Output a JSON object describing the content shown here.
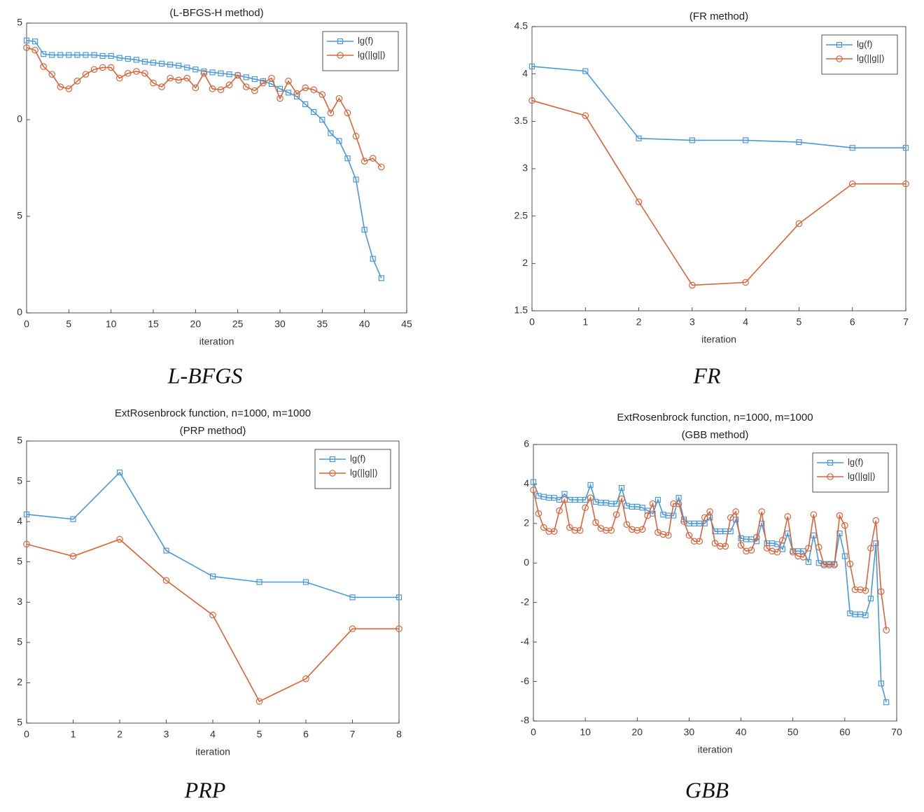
{
  "chart_data": [
    {
      "type": "line",
      "title": "(L-BFGS-H method)",
      "xlabel": "iteration",
      "legend": "northeast",
      "xlim": [
        0,
        45
      ],
      "xticks": [
        0,
        5,
        10,
        15,
        20,
        25,
        30,
        35,
        40,
        45
      ],
      "ylim": [
        -10,
        5
      ],
      "yticks": [
        {
          "value": -10,
          "label": "0"
        },
        {
          "value": -5,
          "label": "5"
        },
        0,
        5
      ],
      "x": [
        0,
        1,
        2,
        3,
        4,
        5,
        6,
        7,
        8,
        9,
        10,
        11,
        12,
        13,
        14,
        15,
        16,
        17,
        18,
        19,
        20,
        21,
        22,
        23,
        24,
        25,
        26,
        27,
        28,
        29,
        30,
        31,
        32,
        33,
        34,
        35,
        36,
        37,
        38,
        39,
        40,
        41,
        42
      ],
      "series": [
        {
          "name": "lg(f)",
          "color": "#4a98dc",
          "marker": "square",
          "values": [
            4.1,
            4.05,
            3.4,
            3.35,
            3.35,
            3.35,
            3.35,
            3.35,
            3.35,
            3.3,
            3.3,
            3.2,
            3.15,
            3.1,
            3.0,
            2.95,
            2.9,
            2.85,
            2.8,
            2.7,
            2.6,
            2.5,
            2.45,
            2.4,
            2.35,
            2.3,
            2.2,
            2.1,
            2.0,
            1.85,
            1.6,
            1.4,
            1.2,
            0.8,
            0.4,
            0,
            -0.7,
            -1.1,
            -2.0,
            -3.1,
            -5.7,
            -7.2,
            -8.2
          ]
        },
        {
          "name": "lg(||g||)",
          "color": "#d9643a",
          "marker": "circle",
          "values": [
            3.73,
            3.6,
            2.75,
            2.35,
            1.7,
            1.6,
            2.0,
            2.35,
            2.6,
            2.7,
            2.7,
            2.15,
            2.4,
            2.5,
            2.4,
            1.9,
            1.7,
            2.15,
            2.05,
            2.15,
            1.65,
            2.4,
            1.6,
            1.55,
            1.8,
            2.3,
            1.7,
            1.5,
            1.9,
            2.15,
            1.1,
            2.0,
            1.35,
            1.65,
            1.55,
            1.3,
            0.35,
            1.1,
            0.35,
            -0.85,
            -2.15,
            -2.0,
            -2.45
          ]
        }
      ]
    },
    {
      "type": "line",
      "title": "(FR method)",
      "xlabel": "iteration",
      "legend": "northeast",
      "xlim": [
        0,
        7
      ],
      "xticks": [
        0,
        1,
        2,
        3,
        4,
        5,
        6,
        7
      ],
      "ylim": [
        1.5,
        4.5
      ],
      "yticks": [
        1.5,
        2,
        2.5,
        3,
        3.5,
        4,
        4.5
      ],
      "x": [
        0,
        1,
        2,
        3,
        4,
        5,
        6,
        7
      ],
      "series": [
        {
          "name": "lg(f)",
          "color": "#4a98dc",
          "marker": "square",
          "values": [
            4.08,
            4.03,
            3.32,
            3.3,
            3.3,
            3.28,
            3.22,
            3.22
          ]
        },
        {
          "name": "lg(||g||)",
          "color": "#d9643a",
          "marker": "circle",
          "values": [
            3.72,
            3.56,
            2.65,
            1.77,
            1.8,
            2.42,
            2.84,
            2.84
          ]
        }
      ]
    },
    {
      "type": "line",
      "title": "ExtRosenbrock function, n=1000, m=1000",
      "subtitle": "(PRP method)",
      "xlabel": "iteration",
      "legend": "northeast",
      "xlim": [
        0,
        8
      ],
      "xticks": [
        0,
        1,
        2,
        3,
        4,
        5,
        6,
        7,
        8
      ],
      "ylim": [
        1.5,
        5
      ],
      "yticks": [
        {
          "value": 1.5,
          "label": "5"
        },
        {
          "value": 2,
          "label": "2"
        },
        {
          "value": 2.5,
          "label": "5"
        },
        {
          "value": 3,
          "label": "3"
        },
        {
          "value": 3.5,
          "label": "5"
        },
        {
          "value": 4,
          "label": "4"
        },
        {
          "value": 4.5,
          "label": "5"
        },
        5
      ],
      "x": [
        0,
        1,
        2,
        3,
        4,
        5,
        6,
        7,
        8
      ],
      "series": [
        {
          "name": "lg(f)",
          "color": "#4a98dc",
          "marker": "square",
          "values": [
            4.09,
            4.03,
            4.61,
            3.64,
            3.32,
            3.25,
            3.25,
            3.06,
            3.06
          ]
        },
        {
          "name": "lg(||g||)",
          "color": "#d9643a",
          "marker": "circle",
          "values": [
            3.72,
            3.57,
            3.78,
            3.27,
            2.84,
            1.77,
            2.05,
            2.67,
            2.67
          ]
        }
      ]
    },
    {
      "type": "line",
      "title": "ExtRosenbrock function, n=1000, m=1000",
      "subtitle": "(GBB method)",
      "xlabel": "iteration",
      "legend": "northeast",
      "xlim": [
        0,
        70
      ],
      "xticks": [
        0,
        10,
        20,
        30,
        40,
        50,
        60,
        70
      ],
      "ylim": [
        -8,
        6
      ],
      "yticks": [
        -8,
        -6,
        -4,
        -2,
        0,
        2,
        4,
        6
      ],
      "x": [
        0,
        1,
        2,
        3,
        4,
        5,
        6,
        7,
        8,
        9,
        10,
        11,
        12,
        13,
        14,
        15,
        16,
        17,
        18,
        19,
        20,
        21,
        22,
        23,
        24,
        25,
        26,
        27,
        28,
        29,
        30,
        31,
        32,
        33,
        34,
        35,
        36,
        37,
        38,
        39,
        40,
        41,
        42,
        43,
        44,
        45,
        46,
        47,
        48,
        49,
        50,
        51,
        52,
        53,
        54,
        55,
        56,
        57,
        58,
        59,
        60,
        61,
        62,
        63,
        64,
        65,
        66,
        67,
        68
      ],
      "series": [
        {
          "name": "lg(f)",
          "color": "#4a98dc",
          "marker": "square",
          "values": [
            4.1,
            3.4,
            3.35,
            3.3,
            3.3,
            3.2,
            3.5,
            3.2,
            3.2,
            3.2,
            3.2,
            3.95,
            3.1,
            3.05,
            3.05,
            3.0,
            3.0,
            3.8,
            2.9,
            2.85,
            2.85,
            2.8,
            2.65,
            2.5,
            3.2,
            2.45,
            2.4,
            2.4,
            3.3,
            2.2,
            2.0,
            2.0,
            2.0,
            2.0,
            2.3,
            1.6,
            1.6,
            1.6,
            1.6,
            2.2,
            1.25,
            1.2,
            1.2,
            1.1,
            2.0,
            1.0,
            1.0,
            0.95,
            0.7,
            1.5,
            0.6,
            0.6,
            0.6,
            0.05,
            1.4,
            0.0,
            -0.05,
            -0.05,
            -0.05,
            1.5,
            0.35,
            -2.55,
            -2.6,
            -2.6,
            -2.65,
            -1.8,
            1.0,
            -6.1,
            -7.05
          ]
        },
        {
          "name": "lg(||g||)",
          "color": "#d9643a",
          "marker": "circle",
          "values": [
            3.7,
            2.5,
            1.8,
            1.6,
            1.6,
            2.65,
            3.2,
            1.8,
            1.65,
            1.65,
            2.8,
            3.3,
            2.05,
            1.75,
            1.65,
            1.65,
            2.45,
            3.25,
            1.95,
            1.7,
            1.65,
            1.7,
            2.4,
            3.0,
            1.55,
            1.45,
            1.4,
            3.0,
            3.0,
            2.1,
            1.4,
            1.1,
            1.1,
            2.3,
            2.6,
            1.0,
            0.85,
            0.85,
            2.3,
            2.6,
            0.9,
            0.6,
            0.65,
            1.3,
            2.6,
            0.75,
            0.6,
            0.55,
            1.15,
            2.35,
            0.55,
            0.35,
            0.3,
            0.75,
            2.45,
            0.8,
            -0.1,
            -0.1,
            -0.1,
            2.4,
            1.9,
            -0.05,
            -1.35,
            -1.35,
            -1.4,
            0.75,
            2.15,
            -1.45,
            -3.4
          ]
        }
      ]
    }
  ],
  "captions": [
    "L-BFGS",
    "FR",
    "PRP",
    "GBB"
  ]
}
